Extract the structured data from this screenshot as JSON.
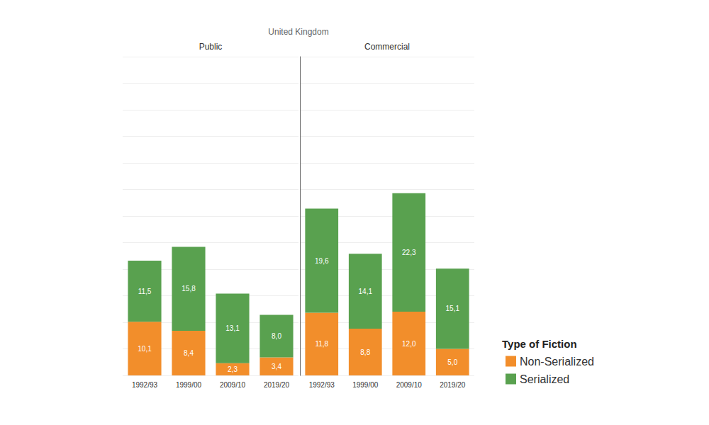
{
  "title": "United Kingdom",
  "legend_title": "Type of Fiction",
  "chart_data": [
    {
      "type": "bar",
      "title": "Public",
      "categories": [
        "1992/93",
        "1999/00",
        "2009/10",
        "2019/20"
      ],
      "series": [
        {
          "name": "Non-Serialized",
          "color": "#f28e2b",
          "values": [
            10.1,
            8.4,
            2.3,
            3.4
          ],
          "value_labels": [
            "10,1",
            "8,4",
            "2,3",
            "3,4"
          ]
        },
        {
          "name": "Serialized",
          "color": "#59a14f",
          "values": [
            11.5,
            15.8,
            13.1,
            8.0
          ],
          "value_labels": [
            "11,5",
            "15,8",
            "13,1",
            "8,0"
          ]
        }
      ],
      "ylim": [
        0,
        60
      ],
      "yticks": [
        0,
        5,
        10,
        15,
        20,
        25,
        30,
        35,
        40,
        45,
        50,
        55,
        60
      ],
      "grid": true,
      "stacked": true,
      "data_labels": true,
      "tick_labels": "x"
    },
    {
      "type": "bar",
      "title": "Commercial",
      "categories": [
        "1992/93",
        "1999/00",
        "2009/10",
        "2019/20"
      ],
      "series": [
        {
          "name": "Non-Serialized",
          "color": "#f28e2b",
          "values": [
            11.8,
            8.8,
            12.0,
            5.0
          ],
          "value_labels": [
            "11,8",
            "8,8",
            "12,0",
            "5,0"
          ]
        },
        {
          "name": "Serialized",
          "color": "#59a14f",
          "values": [
            19.6,
            14.1,
            22.3,
            15.1
          ],
          "value_labels": [
            "19,6",
            "14,1",
            "22,3",
            "15,1"
          ]
        }
      ],
      "ylim": [
        0,
        60
      ],
      "yticks": [
        0,
        5,
        10,
        15,
        20,
        25,
        30,
        35,
        40,
        45,
        50,
        55,
        60
      ],
      "grid": true,
      "stacked": true,
      "data_labels": true,
      "tick_labels": "x",
      "legend": "lower right"
    }
  ]
}
